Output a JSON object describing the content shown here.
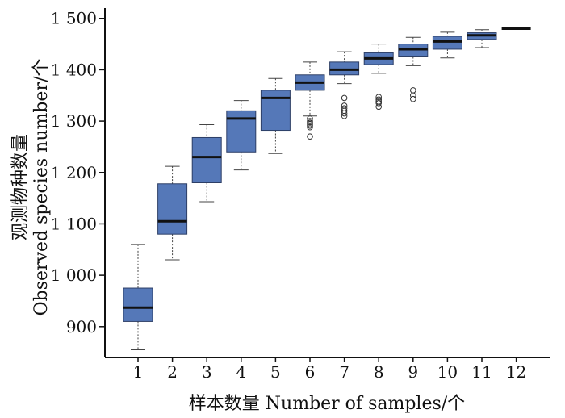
{
  "chart_data": {
    "type": "box",
    "title": "",
    "xlabel": "样本数量  Number of samples/个",
    "ylabel_cn": "观测物种数量",
    "ylabel_en": "Observed species number/个",
    "ylim": [
      840,
      1520
    ],
    "yticks": [
      900,
      1000,
      1100,
      1200,
      1300,
      1400,
      1500
    ],
    "ytick_labels": [
      "900",
      "1 000",
      "1 100",
      "1 200",
      "1 300",
      "1 400",
      "1 500"
    ],
    "categories": [
      "1",
      "2",
      "3",
      "4",
      "5",
      "6",
      "7",
      "8",
      "9",
      "10",
      "11",
      "12"
    ],
    "box_color": "#5578b8",
    "boxes": [
      {
        "x": "1",
        "whisker_low": 855,
        "q1": 910,
        "median": 937,
        "q3": 975,
        "whisker_high": 1060,
        "outliers": []
      },
      {
        "x": "2",
        "whisker_low": 1030,
        "q1": 1080,
        "median": 1105,
        "q3": 1178,
        "whisker_high": 1212,
        "outliers": []
      },
      {
        "x": "3",
        "whisker_low": 1143,
        "q1": 1180,
        "median": 1230,
        "q3": 1268,
        "whisker_high": 1293,
        "outliers": []
      },
      {
        "x": "4",
        "whisker_low": 1205,
        "q1": 1240,
        "median": 1305,
        "q3": 1320,
        "whisker_high": 1340,
        "outliers": []
      },
      {
        "x": "5",
        "whisker_low": 1237,
        "q1": 1282,
        "median": 1345,
        "q3": 1360,
        "whisker_high": 1383,
        "outliers": []
      },
      {
        "x": "6",
        "whisker_low": 1310,
        "q1": 1360,
        "median": 1375,
        "q3": 1390,
        "whisker_high": 1415,
        "outliers": [
          1305,
          1300,
          1297,
          1294,
          1291,
          1288,
          1270
        ]
      },
      {
        "x": "7",
        "whisker_low": 1373,
        "q1": 1390,
        "median": 1400,
        "q3": 1415,
        "whisker_high": 1435,
        "outliers": [
          1345,
          1330,
          1325,
          1320,
          1315,
          1310
        ]
      },
      {
        "x": "8",
        "whisker_low": 1393,
        "q1": 1410,
        "median": 1422,
        "q3": 1433,
        "whisker_high": 1450,
        "outliers": [
          1347,
          1342,
          1338,
          1335,
          1328
        ]
      },
      {
        "x": "9",
        "whisker_low": 1408,
        "q1": 1425,
        "median": 1440,
        "q3": 1450,
        "whisker_high": 1463,
        "outliers": [
          1360,
          1350,
          1343
        ]
      },
      {
        "x": "10",
        "whisker_low": 1423,
        "q1": 1440,
        "median": 1455,
        "q3": 1465,
        "whisker_high": 1473,
        "outliers": []
      },
      {
        "x": "11",
        "whisker_low": 1443,
        "q1": 1459,
        "median": 1467,
        "q3": 1472,
        "whisker_high": 1478,
        "outliers": []
      },
      {
        "x": "12",
        "whisker_low": 1480,
        "q1": 1480,
        "median": 1480,
        "q3": 1480,
        "whisker_high": 1480,
        "outliers": []
      }
    ]
  }
}
